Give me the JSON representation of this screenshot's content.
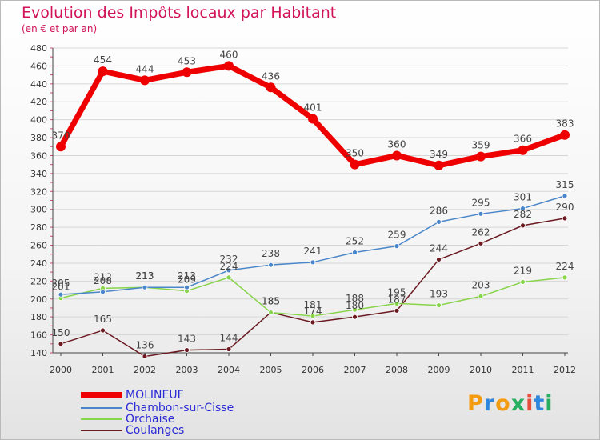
{
  "chart_data": {
    "type": "line",
    "title": "Evolution des Impôts locaux par Habitant",
    "subtitle": "(en € et par an)",
    "categories": [
      "2000",
      "2001",
      "2002",
      "2003",
      "2004",
      "2005",
      "2006",
      "2007",
      "2008",
      "2009",
      "2010",
      "2011",
      "2012"
    ],
    "yticks": [
      140,
      160,
      180,
      200,
      220,
      240,
      260,
      280,
      300,
      320,
      340,
      360,
      380,
      400,
      420,
      440,
      460,
      480
    ],
    "ylim": [
      140,
      480
    ],
    "series": [
      {
        "name": "MOLINEUF",
        "color": "#ee0000",
        "values": [
          370,
          454,
          444,
          453,
          460,
          436,
          401,
          350,
          360,
          349,
          359,
          366,
          383
        ],
        "labels": [
          "370",
          "454",
          "444",
          "453",
          "460",
          "436",
          "401",
          "350",
          "360",
          "349",
          "359",
          "366",
          "383"
        ]
      },
      {
        "name": "Chambon-sur-Cisse",
        "color": "#4a86c9",
        "values": [
          205,
          208,
          213,
          213,
          232,
          238,
          241,
          252,
          259,
          286,
          295,
          301,
          315
        ],
        "labels": [
          "205",
          "208",
          "213",
          "213",
          "232",
          "238",
          "241",
          "252",
          "259",
          "286",
          "295",
          "301",
          "315"
        ]
      },
      {
        "name": "Orchaise",
        "color": "#88d44a",
        "values": [
          201,
          212,
          213,
          209,
          224,
          185,
          181,
          188,
          195,
          193,
          203,
          219,
          224
        ],
        "labels": [
          "201",
          "212",
          "213",
          "209",
          "224",
          "185",
          "181",
          "188",
          "195",
          "193",
          "203",
          "219",
          "224"
        ]
      },
      {
        "name": "Coulanges",
        "color": "#6b1a22",
        "values": [
          150,
          165,
          136,
          143,
          144,
          185,
          174,
          180,
          187,
          244,
          262,
          282,
          290
        ],
        "labels": [
          "150",
          "165",
          "136",
          "143",
          "144",
          "185",
          "174",
          "180",
          "187",
          "244",
          "262",
          "282",
          "290"
        ]
      }
    ]
  },
  "logo": {
    "letters": [
      "P",
      "r",
      "o",
      "x",
      "i",
      "t",
      "i"
    ],
    "colors": [
      "#f39c12",
      "#2e86de",
      "#f39c12",
      "#27ae60",
      "#e74c3c",
      "#2e86de",
      "#27ae60"
    ]
  }
}
